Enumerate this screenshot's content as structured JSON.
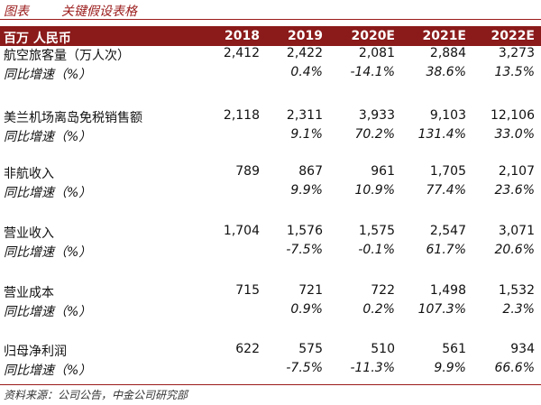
{
  "figure": {
    "label": "图表",
    "title": "关键假设表格"
  },
  "table": {
    "unit": "百万 人民币",
    "columns": [
      "2018",
      "2019",
      "2020E",
      "2021E",
      "2022E"
    ],
    "rows": [
      {
        "label": "航空旅客量（万人次）",
        "values": [
          "2,412",
          "2,422",
          "2,081",
          "2,884",
          "3,273"
        ],
        "growth_label": "同比增速（%）",
        "growth": [
          "",
          "0.4%",
          "-14.1%",
          "38.6%",
          "13.5%"
        ]
      },
      {
        "label": "美兰机场离岛免税销售额",
        "values": [
          "2,118",
          "2,311",
          "3,933",
          "9,103",
          "12,106"
        ],
        "growth_label": "同比增速（%）",
        "growth": [
          "",
          "9.1%",
          "70.2%",
          "131.4%",
          "33.0%"
        ]
      },
      {
        "label": "非航收入",
        "values": [
          "789",
          "867",
          "961",
          "1,705",
          "2,107"
        ],
        "growth_label": "同比增速（%）",
        "growth": [
          "",
          "9.9%",
          "10.9%",
          "77.4%",
          "23.6%"
        ]
      },
      {
        "label": "营业收入",
        "values": [
          "1,704",
          "1,576",
          "1,575",
          "2,547",
          "3,071"
        ],
        "growth_label": "同比增速（%）",
        "growth": [
          "",
          "-7.5%",
          "-0.1%",
          "61.7%",
          "20.6%"
        ]
      },
      {
        "label": "营业成本",
        "values": [
          "715",
          "721",
          "722",
          "1,498",
          "1,532"
        ],
        "growth_label": "同比增速（%）",
        "growth": [
          "",
          "0.9%",
          "0.2%",
          "107.3%",
          "2.3%"
        ]
      },
      {
        "label": "归母净利润",
        "values": [
          "622",
          "575",
          "510",
          "561",
          "934"
        ],
        "growth_label": "同比增速（%）",
        "growth": [
          "",
          "-7.5%",
          "-11.3%",
          "9.9%",
          "66.6%"
        ]
      }
    ]
  },
  "source": "资料来源：公司公告，中金公司研究部",
  "colors": {
    "header_bg": "#8b1a1a",
    "title_color": "#9b1b1b"
  }
}
